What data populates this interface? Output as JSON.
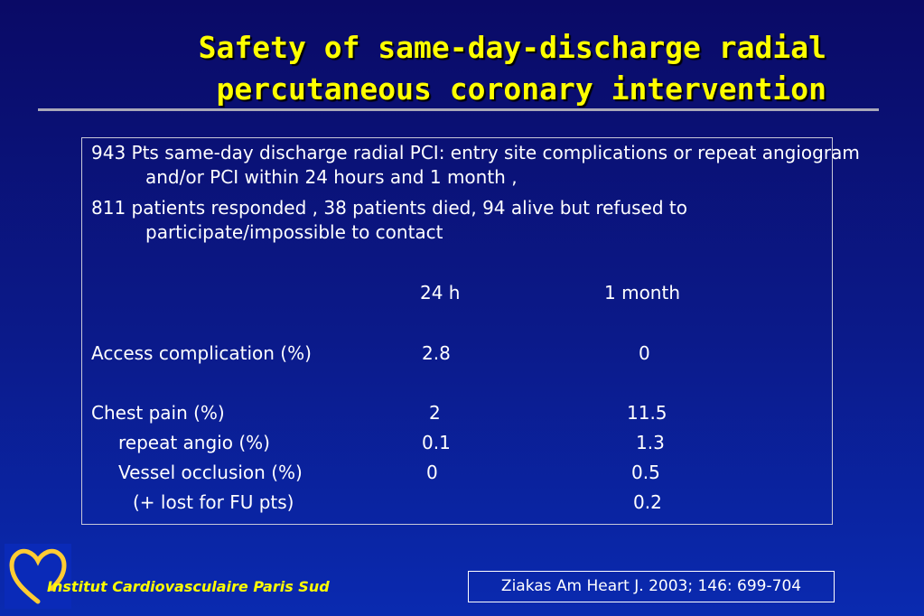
{
  "slide": {
    "title_line1": "Safety of same-day-discharge radial",
    "title_line2": "percutaneous coronary intervention"
  },
  "content": {
    "paragraph1": "943 Pts same-day discharge radial PCI:  entry site complications or repeat angiogram and/or PCI within 24 hours and 1 month ,",
    "paragraph2": "811 patients responded , 38 patients died, 94 alive but refused to participate/impossible to contact",
    "table": {
      "columns": [
        "24 h",
        "1 month"
      ],
      "rows": [
        {
          "label": "Access complication (%)",
          "h24": "2.8",
          "month1": "0"
        },
        {
          "label": "Chest pain (%)",
          "h24": "2",
          "month1": "11.5"
        },
        {
          "label": "repeat angio (%)",
          "h24": "0.1",
          "month1": "1.3"
        },
        {
          "label": "Vessel occlusion (%)",
          "h24": "0",
          "month1": "0.5"
        },
        {
          "label": "(+ lost for FU pts)",
          "h24": "",
          "month1": "0.2"
        }
      ]
    }
  },
  "footer": {
    "institute": "Institut Cardiovasculaire Paris Sud",
    "citation": "Ziakas  Am Heart J. 2003; 146: 699-704",
    "logo_icon": "heart-logo-icon"
  },
  "colors": {
    "title": "#ffff00",
    "background": "#0b1a8a",
    "text": "#ffffff"
  }
}
